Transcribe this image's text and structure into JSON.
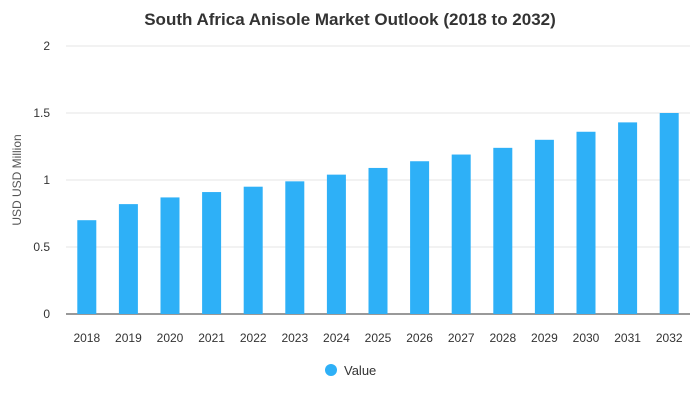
{
  "chart_data": {
    "type": "bar",
    "title": "South Africa Anisole Market Outlook (2018 to 2032)",
    "xlabel": "",
    "ylabel": "USD USD Million",
    "categories": [
      "2018",
      "2019",
      "2020",
      "2021",
      "2022",
      "2023",
      "2024",
      "2025",
      "2026",
      "2027",
      "2028",
      "2029",
      "2030",
      "2031",
      "2032"
    ],
    "series": [
      {
        "name": "Value",
        "color": "#2eb0f7",
        "values": [
          0.7,
          0.82,
          0.87,
          0.91,
          0.95,
          0.99,
          1.04,
          1.09,
          1.14,
          1.19,
          1.24,
          1.3,
          1.36,
          1.43,
          1.5
        ]
      }
    ],
    "yticks": [
      "0",
      "0.5",
      "1",
      "1.5",
      "2"
    ],
    "ylim": [
      0,
      2
    ],
    "grid": true,
    "legend_position": "bottom-center"
  }
}
